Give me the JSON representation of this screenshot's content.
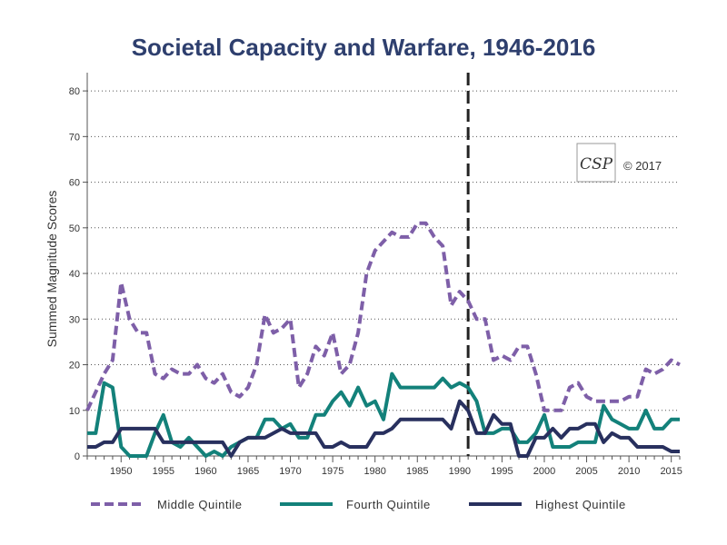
{
  "chart_data": {
    "type": "line",
    "title": "Societal Capacity and Warfare, 1946-2016",
    "ylabel": "Summed Magnitude Scores",
    "xlabel": "",
    "ylim": [
      0,
      84
    ],
    "xlim": [
      1946,
      2016
    ],
    "yticks": [
      0,
      10,
      20,
      30,
      40,
      50,
      60,
      70,
      80
    ],
    "xticks": [
      1950,
      1955,
      1960,
      1965,
      1970,
      1975,
      1980,
      1985,
      1990,
      1995,
      2000,
      2005,
      2010,
      2015
    ],
    "grid": "horizontal-dotted",
    "legend_position": "bottom",
    "reference_line": {
      "x": 1991,
      "style": "dashed",
      "color": "#222222"
    },
    "copyright": "© 2017",
    "logo_text": "CSP",
    "x": [
      1946,
      1947,
      1948,
      1949,
      1950,
      1951,
      1952,
      1953,
      1954,
      1955,
      1956,
      1957,
      1958,
      1959,
      1960,
      1961,
      1962,
      1963,
      1964,
      1965,
      1966,
      1967,
      1968,
      1969,
      1970,
      1971,
      1972,
      1973,
      1974,
      1975,
      1976,
      1977,
      1978,
      1979,
      1980,
      1981,
      1982,
      1983,
      1984,
      1985,
      1986,
      1987,
      1988,
      1989,
      1990,
      1991,
      1992,
      1993,
      1994,
      1995,
      1996,
      1997,
      1998,
      1999,
      2000,
      2001,
      2002,
      2003,
      2004,
      2005,
      2006,
      2007,
      2008,
      2009,
      2010,
      2011,
      2012,
      2013,
      2014,
      2015,
      2016
    ],
    "series": [
      {
        "name": "Middle Quintile",
        "color": "#7e5fa8",
        "style": "dashed",
        "values": [
          10,
          14,
          18,
          21,
          38,
          30,
          27,
          27,
          18,
          17,
          19,
          18,
          18,
          20,
          17,
          16,
          18,
          14,
          13,
          15,
          20,
          31,
          27,
          28,
          30,
          15,
          18,
          24,
          22,
          27,
          18,
          20,
          27,
          40,
          45,
          47,
          49,
          48,
          48,
          51,
          51,
          48,
          46,
          33,
          36,
          34,
          30,
          30,
          21,
          22,
          21,
          24,
          24,
          18,
          10,
          10,
          10,
          15,
          16,
          13,
          12,
          12,
          12,
          12,
          13,
          13,
          19,
          18,
          19,
          21,
          20
        ]
      },
      {
        "name": "Fourth Quintile",
        "color": "#13817a",
        "style": "solid",
        "values": [
          5,
          5,
          16,
          15,
          2,
          0,
          0,
          0,
          5,
          9,
          3,
          2,
          4,
          2,
          0,
          1,
          0,
          2,
          3,
          4,
          4,
          8,
          8,
          6,
          7,
          4,
          4,
          9,
          9,
          12,
          14,
          11,
          15,
          11,
          12,
          8,
          18,
          15,
          15,
          15,
          15,
          15,
          17,
          15,
          16,
          15,
          12,
          5,
          5,
          6,
          6,
          3,
          3,
          5,
          9,
          2,
          2,
          2,
          3,
          3,
          3,
          11,
          8,
          7,
          6,
          6,
          10,
          6,
          6,
          8,
          8
        ]
      },
      {
        "name": "Highest Quintile",
        "color": "#28305e",
        "style": "solid",
        "values": [
          2,
          2,
          3,
          3,
          6,
          6,
          6,
          6,
          6,
          3,
          3,
          3,
          3,
          3,
          3,
          3,
          3,
          0,
          3,
          4,
          4,
          4,
          5,
          6,
          5,
          5,
          5,
          5,
          2,
          2,
          3,
          2,
          2,
          2,
          5,
          5,
          6,
          8,
          8,
          8,
          8,
          8,
          8,
          6,
          12,
          10,
          5,
          5,
          9,
          7,
          7,
          0,
          0,
          4,
          4,
          6,
          4,
          6,
          6,
          7,
          7,
          3,
          5,
          4,
          4,
          2,
          2,
          2,
          2,
          1,
          1
        ]
      }
    ]
  }
}
